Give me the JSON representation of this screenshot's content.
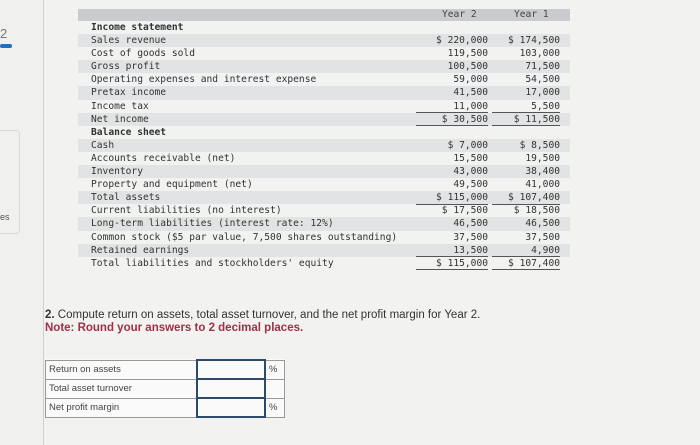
{
  "sidebar": {
    "number": "2",
    "partial_label": "es",
    "accent": "#1d6fc0"
  },
  "table": {
    "headers": [
      "Year 2",
      "Year 1"
    ],
    "rows": [
      {
        "label": "Income statement",
        "y2": "",
        "y1": ""
      },
      {
        "label": "Sales revenue",
        "y2": "$ 220,000",
        "y1": "$ 174,500"
      },
      {
        "label": "Cost of goods sold",
        "y2": "119,500",
        "y1": "103,000"
      },
      {
        "label": "Gross profit",
        "y2": "100,500",
        "y1": "71,500"
      },
      {
        "label": "Operating expenses and interest expense",
        "y2": "59,000",
        "y1": "54,500"
      },
      {
        "label": "Pretax income",
        "y2": "41,500",
        "y1": "17,000"
      },
      {
        "label": "Income tax",
        "y2": "11,000",
        "y1": "5,500"
      },
      {
        "label": "Net income",
        "y2": "$ 30,500",
        "y1": "$ 11,500"
      },
      {
        "label": "Balance sheet",
        "y2": "",
        "y1": ""
      },
      {
        "label": "Cash",
        "y2": "$ 7,000",
        "y1": "$ 8,500"
      },
      {
        "label": "Accounts receivable (net)",
        "y2": "15,500",
        "y1": "19,500"
      },
      {
        "label": "Inventory",
        "y2": "43,000",
        "y1": "38,400"
      },
      {
        "label": "Property and equipment (net)",
        "y2": "49,500",
        "y1": "41,000"
      },
      {
        "label": "Total assets",
        "y2": "$ 115,000",
        "y1": "$ 107,400"
      },
      {
        "label": "Current liabilities (no interest)",
        "y2": "$ 17,500",
        "y1": "$ 18,500"
      },
      {
        "label": "Long-term liabilities (interest rate: 12%)",
        "y2": "46,500",
        "y1": "46,500"
      },
      {
        "label": "Common stock ($5 par value, 7,500 shares outstanding)",
        "y2": "37,500",
        "y1": "37,500"
      },
      {
        "label": "Retained earnings",
        "y2": "13,500",
        "y1": "4,900"
      },
      {
        "label": "Total liabilities and stockholders' equity",
        "y2": "$ 115,000",
        "y1": "$ 107,400"
      }
    ]
  },
  "question": {
    "number": "2.",
    "text": "Compute return on assets, total asset turnover, and the net profit margin for Year 2.",
    "note": "Note: Round your answers to 2 decimal places.",
    "note_color": "#a03048"
  },
  "answers": [
    {
      "label": "Return on assets",
      "value": "",
      "unit": "%"
    },
    {
      "label": "Total asset turnover",
      "value": "",
      "unit": ""
    },
    {
      "label": "Net profit margin",
      "value": "",
      "unit": "%"
    }
  ]
}
